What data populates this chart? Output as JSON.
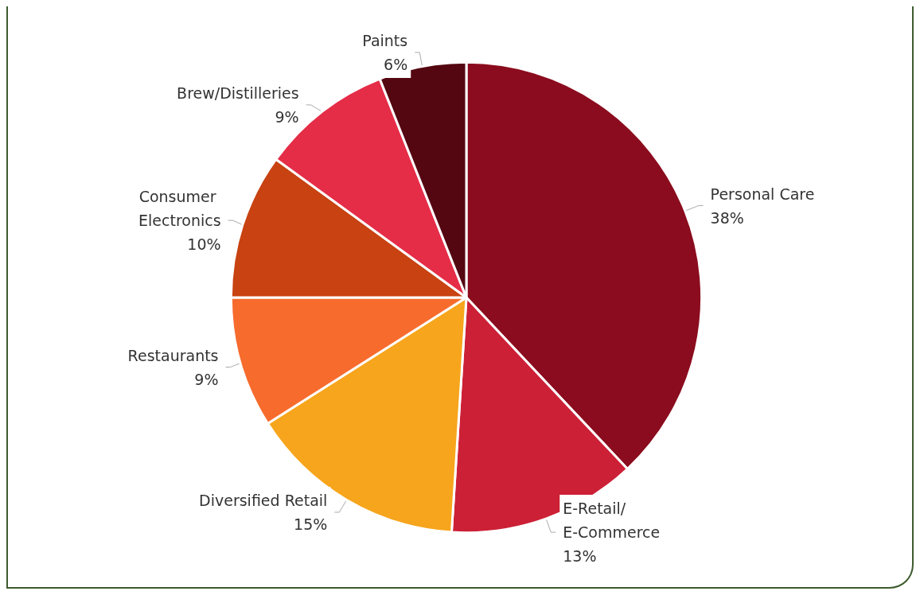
{
  "chart_data": {
    "type": "pie",
    "categories": [
      "Personal Care",
      "E-Retail/ E-Commerce",
      "Diversified Retail",
      "Restaurants",
      "Consumer Electronics",
      "Brew/Distilleries",
      "Paints"
    ],
    "values": [
      38,
      13,
      15,
      9,
      10,
      9,
      6
    ],
    "colors": [
      "#8b0c1e",
      "#cc2036",
      "#f7a51c",
      "#f76b2d",
      "#c84212",
      "#e52d48",
      "#540711"
    ],
    "value_labels": [
      "38%",
      "13%",
      "15%",
      "9%",
      "10%",
      "9%",
      "6%"
    ],
    "legend": false
  }
}
